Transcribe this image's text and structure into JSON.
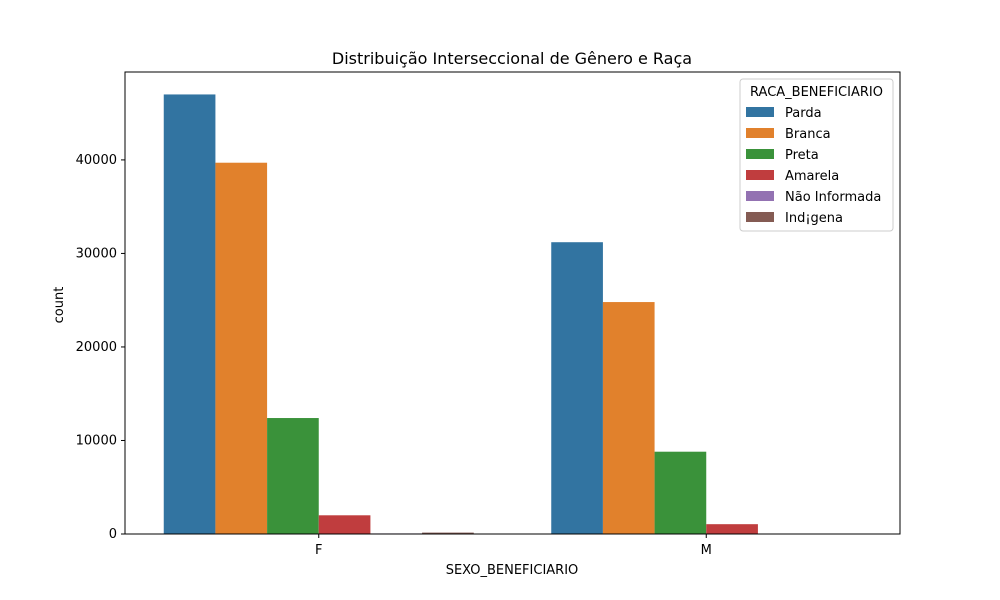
{
  "chart_data": {
    "type": "bar",
    "title": "Distribuição Interseccional de Gênero e Raça",
    "xlabel": "SEXO_BENEFICIARIO",
    "ylabel": "count",
    "categories": [
      "F",
      "M"
    ],
    "ylim": [
      0,
      49400
    ],
    "yticks": [
      0,
      10000,
      20000,
      30000,
      40000
    ],
    "ytick_labels": [
      "0",
      "10000",
      "20000",
      "30000",
      "40000"
    ],
    "legend": {
      "title": "RACA_BENEFICIARIO",
      "position": "top-right"
    },
    "series": [
      {
        "name": "Parda",
        "color": "#3274a1",
        "values": [
          47000,
          31200
        ]
      },
      {
        "name": "Branca",
        "color": "#e1812c",
        "values": [
          39700,
          24800
        ]
      },
      {
        "name": "Preta",
        "color": "#3a923a",
        "values": [
          12400,
          8800
        ]
      },
      {
        "name": "Amarela",
        "color": "#c03d3e",
        "values": [
          2000,
          1050
        ]
      },
      {
        "name": "Não Informada",
        "color": "#9372b2",
        "values": [
          60,
          20
        ]
      },
      {
        "name": "Ind¡gena",
        "color": "#845b53",
        "values": [
          150,
          30
        ]
      }
    ]
  }
}
